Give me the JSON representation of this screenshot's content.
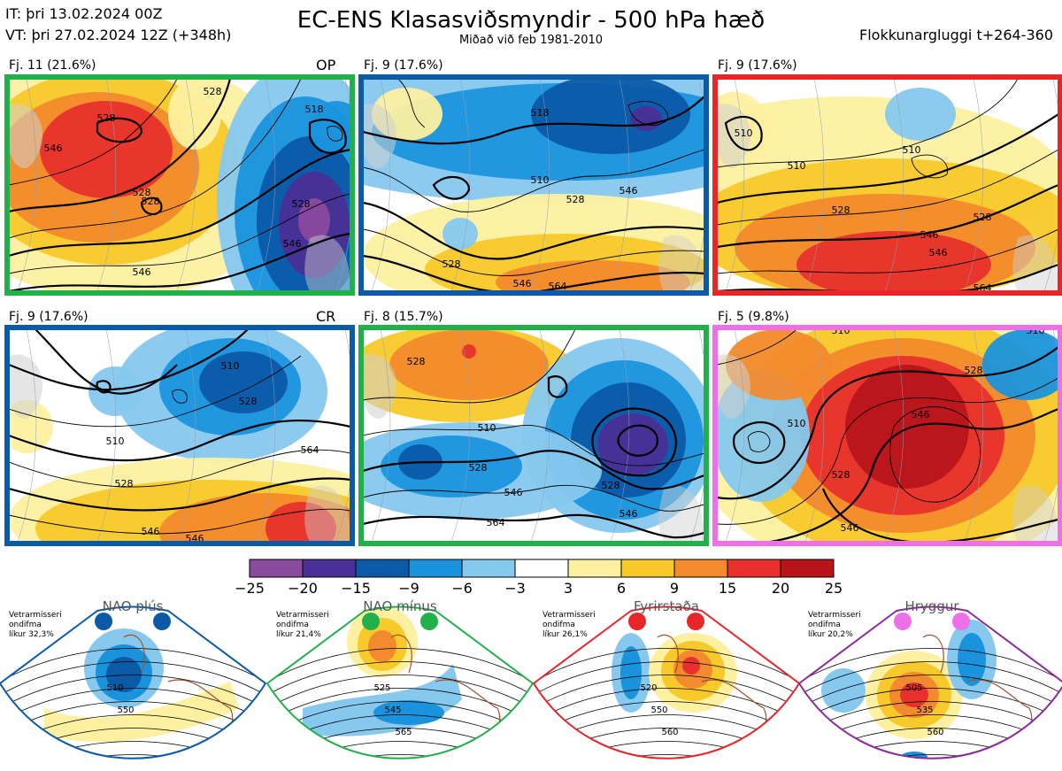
{
  "header": {
    "title": "EC-ENS Klasasviðsmyndir - 500 hPa hæð",
    "subtitle": "Miðað við feb 1981-2010",
    "it_line": "IT: þri 13.02.2024 00Z",
    "vt_line": "VT: þri 27.02.2024 12Z  (+348h)",
    "window": "Flokkunargluggi t+264-360"
  },
  "colors": {
    "green": "#22b04a",
    "blue": "#0b5aa8",
    "red": "#e8262a",
    "pink": "#ee6fe8",
    "purple": "#8b2a9a"
  },
  "panels": [
    {
      "label": "Fj. 11 (21.6%)",
      "tag": "OP",
      "border": "green",
      "members": 11,
      "percent": 21.6
    },
    {
      "label": "Fj. 9 (17.6%)",
      "tag": "",
      "border": "blue",
      "members": 9,
      "percent": 17.6
    },
    {
      "label": "Fj. 9 (17.6%)",
      "tag": "",
      "border": "red",
      "members": 9,
      "percent": 17.6
    },
    {
      "label": "Fj. 9 (17.6%)",
      "tag": "CR",
      "border": "blue",
      "members": 9,
      "percent": 17.6
    },
    {
      "label": "Fj. 8 (15.7%)",
      "tag": "",
      "border": "green",
      "members": 8,
      "percent": 15.7
    },
    {
      "label": "Fj. 5 (9.8%)",
      "tag": "",
      "border": "pink",
      "members": 5,
      "percent": 9.8
    }
  ],
  "chart_data": {
    "type": "heatmap",
    "title": "EC-ENS Klasasviðsmyndir - 500 hPa hæð",
    "colorbar": {
      "ticks": [
        "−25",
        "−20",
        "−15",
        "−9",
        "−6",
        "−3",
        "3",
        "6",
        "9",
        "15",
        "20",
        "25"
      ],
      "colors": [
        "#8a4a9e",
        "#4a2f96",
        "#0b5aa8",
        "#1a93dc",
        "#86c8ee",
        "#ffffff",
        "#fdf0a0",
        "#f8c92a",
        "#f38a2d",
        "#e8312c",
        "#b8151b"
      ]
    },
    "contour_labels": [
      [
        "546",
        "528",
        "528",
        "528",
        "518",
        "528",
        "546",
        "528",
        "546"
      ],
      [
        "528",
        "518",
        "510",
        "546",
        "528",
        "546",
        "564"
      ],
      [
        "510",
        "510",
        "528",
        "546",
        "546",
        "528",
        "510",
        "564"
      ],
      [
        "510",
        "528",
        "546",
        "528",
        "510",
        "564",
        "546"
      ],
      [
        "528",
        "510",
        "528",
        "546",
        "528",
        "546",
        "564"
      ],
      [
        "510",
        "528",
        "546",
        "510",
        "528",
        "546",
        "510"
      ]
    ]
  },
  "regimes": [
    {
      "name": "NAO plús",
      "note1": "Vetrarmisseri",
      "note2": "ondifma",
      "prob": "líkur 32,3%",
      "dot": "#0b5aa8",
      "frame": "#0b5aa8",
      "labels": [
        "510",
        "550"
      ]
    },
    {
      "name": "NAO mínus",
      "note1": "Vetrarmisseri",
      "note2": "ondifma",
      "prob": "líkur 21,4%",
      "dot": "#22b04a",
      "frame": "#22b04a",
      "labels": [
        "525",
        "545",
        "565"
      ]
    },
    {
      "name": "Fyrirstaða",
      "note1": "Vetrarmisseri",
      "note2": "ondifma",
      "prob": "líkur 26,1%",
      "dot": "#e8262a",
      "frame": "#e8262a",
      "labels": [
        "520",
        "550",
        "560"
      ]
    },
    {
      "name": "Hryggur",
      "note1": "Vetrarmisseri",
      "note2": "ondifma",
      "prob": "líkur 20,2%",
      "dot": "#ee6fe8",
      "frame": "#8b2a9a",
      "labels": [
        "505",
        "535",
        "560"
      ]
    }
  ]
}
